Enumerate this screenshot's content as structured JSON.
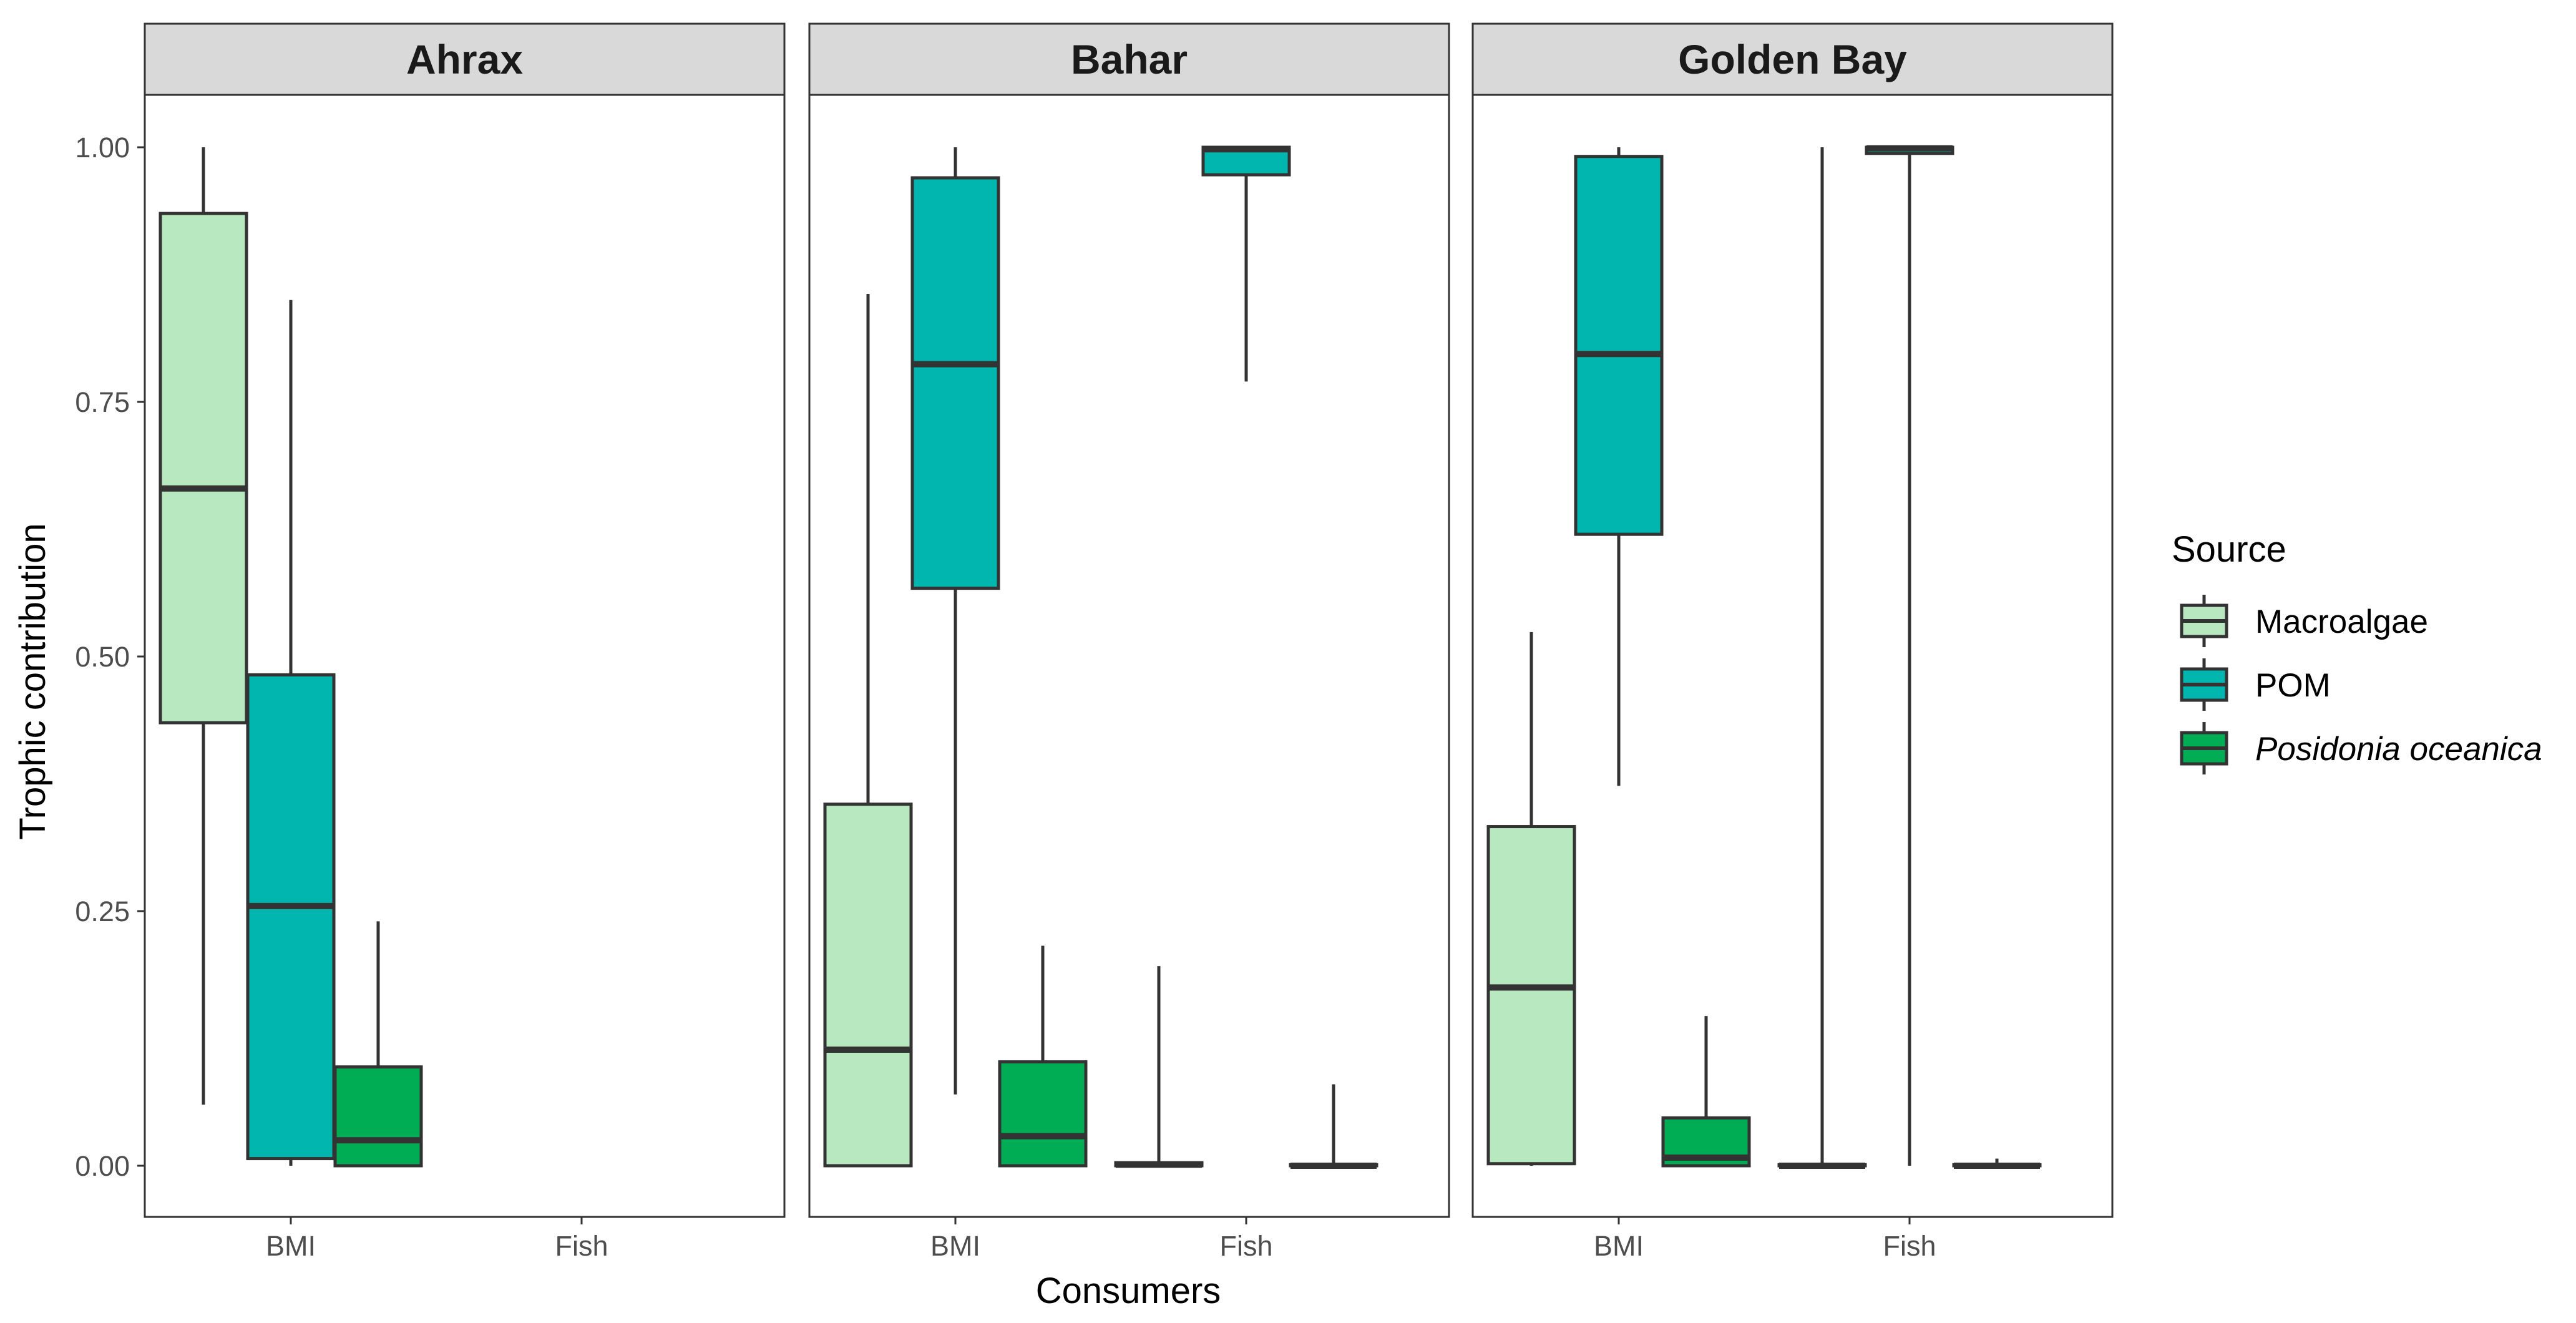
{
  "chart_data": {
    "type": "boxplot",
    "facets": [
      "Ahrax",
      "Bahar",
      "Golden Bay"
    ],
    "categories": [
      "BMI",
      "Fish"
    ],
    "xlabel": "Consumers",
    "ylabel": "Trophic contribution",
    "ylim": [
      0,
      1
    ],
    "yticks": [
      0.0,
      0.25,
      0.5,
      0.75,
      1.0
    ],
    "ytick_labels": [
      "0.00",
      "0.25",
      "0.50",
      "0.75",
      "1.00"
    ],
    "grid": false,
    "legend": {
      "title": "Source",
      "position": "right",
      "entries": [
        {
          "name": "Macroalgae",
          "color": "#b8e8bf",
          "italic": false
        },
        {
          "name": "POM",
          "color": "#00b6ae",
          "italic": false
        },
        {
          "name": "Posidonia oceanica",
          "color": "#00ad55",
          "italic": true
        }
      ]
    },
    "series": [
      {
        "facet": "Ahrax",
        "category": "BMI",
        "source": "Macroalgae",
        "min": 0.06,
        "q1": 0.435,
        "median": 0.665,
        "q3": 0.935,
        "max": 1.0
      },
      {
        "facet": "Ahrax",
        "category": "BMI",
        "source": "POM",
        "min": 0.0,
        "q1": 0.007,
        "median": 0.255,
        "q3": 0.482,
        "max": 0.85
      },
      {
        "facet": "Ahrax",
        "category": "BMI",
        "source": "Posidonia oceanica",
        "min": 0.0,
        "q1": 0.0,
        "median": 0.025,
        "q3": 0.097,
        "max": 0.24
      },
      {
        "facet": "Bahar",
        "category": "BMI",
        "source": "Macroalgae",
        "min": 0.0,
        "q1": 0.0,
        "median": 0.114,
        "q3": 0.355,
        "max": 0.856
      },
      {
        "facet": "Bahar",
        "category": "BMI",
        "source": "POM",
        "min": 0.07,
        "q1": 0.567,
        "median": 0.787,
        "q3": 0.97,
        "max": 1.0
      },
      {
        "facet": "Bahar",
        "category": "BMI",
        "source": "Posidonia oceanica",
        "min": 0.0,
        "q1": 0.0,
        "median": 0.029,
        "q3": 0.102,
        "max": 0.216
      },
      {
        "facet": "Bahar",
        "category": "Fish",
        "source": "Macroalgae",
        "min": 0.0,
        "q1": 0.0,
        "median": 0.001,
        "q3": 0.003,
        "max": 0.196
      },
      {
        "facet": "Bahar",
        "category": "Fish",
        "source": "POM",
        "min": 0.77,
        "q1": 0.973,
        "median": 0.998,
        "q3": 1.0,
        "max": 1.0
      },
      {
        "facet": "Bahar",
        "category": "Fish",
        "source": "Posidonia oceanica",
        "min": 0.0,
        "q1": 0.0,
        "median": 0.0,
        "q3": 0.001,
        "max": 0.08
      },
      {
        "facet": "Golden Bay",
        "category": "BMI",
        "source": "Macroalgae",
        "min": 0.0,
        "q1": 0.002,
        "median": 0.175,
        "q3": 0.333,
        "max": 0.524
      },
      {
        "facet": "Golden Bay",
        "category": "BMI",
        "source": "POM",
        "min": 0.373,
        "q1": 0.62,
        "median": 0.797,
        "q3": 0.991,
        "max": 1.0
      },
      {
        "facet": "Golden Bay",
        "category": "BMI",
        "source": "Posidonia oceanica",
        "min": 0.0,
        "q1": 0.0,
        "median": 0.008,
        "q3": 0.047,
        "max": 0.147
      },
      {
        "facet": "Golden Bay",
        "category": "Fish",
        "source": "Macroalgae",
        "min": 0.0,
        "q1": 0.0,
        "median": 0.0,
        "q3": 0.001,
        "max": 1.0
      },
      {
        "facet": "Golden Bay",
        "category": "Fish",
        "source": "POM",
        "min": 0.0,
        "q1": 0.994,
        "median": 0.999,
        "q3": 1.0,
        "max": 1.0
      },
      {
        "facet": "Golden Bay",
        "category": "Fish",
        "source": "Posidonia oceanica",
        "min": 0.0,
        "q1": 0.0,
        "median": 0.0,
        "q3": 0.001,
        "max": 0.007
      }
    ]
  }
}
